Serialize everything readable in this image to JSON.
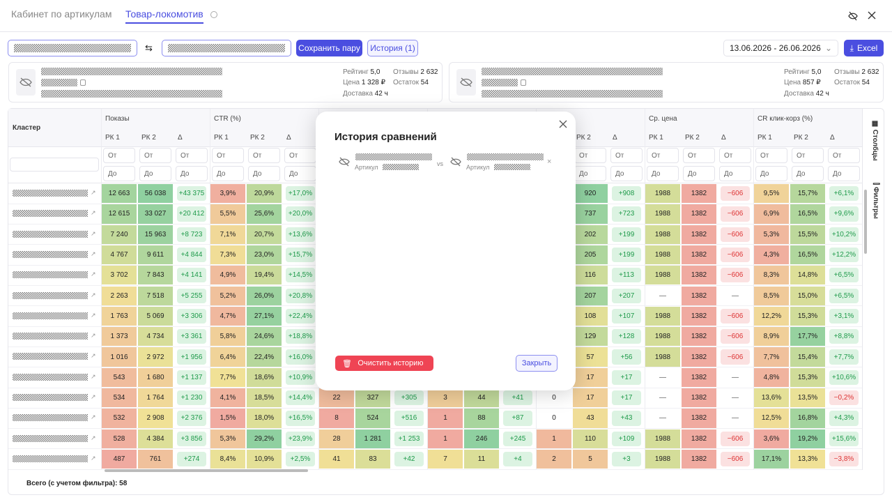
{
  "tabs": [
    "Кабинет по артикулам",
    "Товар-локомотив"
  ],
  "toolbar": {
    "save_pair": "Сохранить пару",
    "history": "История (1)",
    "date_range": "13.06.2026 - 26.06.2026",
    "excel": "Excel"
  },
  "cards": [
    {
      "stats": [
        {
          "label": "Рейтинг",
          "value": "5,0"
        },
        {
          "label": "Отзывы",
          "value": "2 632"
        },
        {
          "label": "Цена",
          "value": "1 328 ₽"
        },
        {
          "label": "Остаток",
          "value": "54"
        },
        {
          "label": "Доставка",
          "value": "42 ч"
        }
      ]
    },
    {
      "stats": [
        {
          "label": "Рейтинг",
          "value": "5,0"
        },
        {
          "label": "Отзывы",
          "value": "2 632"
        },
        {
          "label": "Цена",
          "value": "857 ₽"
        },
        {
          "label": "Остаток",
          "value": "54"
        },
        {
          "label": "Доставка",
          "value": "42 ч"
        }
      ]
    }
  ],
  "table": {
    "cluster_header": "Кластер",
    "groups": [
      {
        "title": "Показы",
        "start": 0
      },
      {
        "title": "CTR (%)",
        "start": 3
      },
      {
        "title": null,
        "start": 6
      },
      {
        "title": null,
        "start": 9
      },
      {
        "title": null,
        "start": 12
      },
      {
        "title": "Ср. цена",
        "start": 15
      },
      {
        "title": "CR клик-корз (%)",
        "start": 18
      }
    ],
    "subheaders": [
      "РК 1",
      "РК 2",
      "Δ",
      "РК 1",
      "РК 2",
      "Δ",
      null,
      null,
      null,
      null,
      null,
      null,
      null,
      "РК 2",
      "Δ",
      "РК 1",
      "РК 2",
      "Δ",
      "РК 1",
      "РК 2",
      "Δ"
    ],
    "filter_from": "От",
    "filter_to": "До",
    "rows": [
      [
        "12 663",
        "56 038",
        "+43 375",
        "3,9%",
        "20,9%",
        "+17,0%",
        null,
        null,
        null,
        null,
        null,
        null,
        null,
        "920",
        "+908",
        "1988",
        "1382",
        "−606",
        "9,5%",
        "15,7%",
        "+6,1%"
      ],
      [
        "12 615",
        "33 027",
        "+20 412",
        "5,5%",
        "25,6%",
        "+20,0%",
        null,
        null,
        null,
        null,
        null,
        null,
        null,
        "737",
        "+723",
        "1988",
        "1382",
        "−606",
        "6,9%",
        "16,5%",
        "+9,6%"
      ],
      [
        "7 240",
        "15 963",
        "+8 723",
        "7,1%",
        "20,7%",
        "+13,6%",
        null,
        null,
        null,
        null,
        null,
        null,
        null,
        "202",
        "+199",
        "1988",
        "1382",
        "−606",
        "5,3%",
        "15,5%",
        "+10,2%"
      ],
      [
        "4 767",
        "9 611",
        "+4 844",
        "7,3%",
        "23,0%",
        "+15,7%",
        null,
        null,
        null,
        null,
        null,
        null,
        null,
        "205",
        "+199",
        "1988",
        "1382",
        "−606",
        "4,3%",
        "16,5%",
        "+12,2%"
      ],
      [
        "3 702",
        "7 843",
        "+4 141",
        "4,9%",
        "19,4%",
        "+14,5%",
        null,
        null,
        null,
        null,
        null,
        null,
        null,
        "116",
        "+113",
        "1988",
        "1382",
        "−606",
        "8,3%",
        "14,8%",
        "+6,5%"
      ],
      [
        "2 263",
        "7 518",
        "+5 255",
        "5,2%",
        "26,0%",
        "+20,8%",
        null,
        null,
        null,
        null,
        null,
        null,
        null,
        "207",
        "+207",
        "—",
        "1382",
        "—",
        "8,5%",
        "15,0%",
        "+6,5%"
      ],
      [
        "1 763",
        "5 069",
        "+3 306",
        "4,7%",
        "27,1%",
        "+22,4%",
        null,
        null,
        null,
        null,
        null,
        null,
        null,
        "108",
        "+107",
        "1988",
        "1382",
        "−606",
        "12,2%",
        "15,3%",
        "+3,1%"
      ],
      [
        "1 373",
        "4 734",
        "+3 361",
        "5,8%",
        "24,6%",
        "+18,8%",
        null,
        null,
        null,
        null,
        null,
        null,
        null,
        "129",
        "+128",
        "1988",
        "1382",
        "−606",
        "8,9%",
        "17,7%",
        "+8,8%"
      ],
      [
        "1 016",
        "2 972",
        "+1 956",
        "6,4%",
        "22,4%",
        "+16,0%",
        null,
        null,
        null,
        null,
        null,
        null,
        null,
        "57",
        "+56",
        "1988",
        "1382",
        "−606",
        "7,7%",
        "15,4%",
        "+7,7%"
      ],
      [
        "543",
        "1 680",
        "+1 137",
        "7,7%",
        "18,6%",
        "+10,9%",
        null,
        null,
        null,
        null,
        null,
        null,
        null,
        "17",
        "+17",
        "—",
        "1382",
        "—",
        "4,8%",
        "15,3%",
        "+10,6%"
      ],
      [
        "534",
        "1 764",
        "+1 230",
        "4,1%",
        "18,5%",
        "+14,4%",
        "22",
        "327",
        "+305",
        "3",
        "44",
        "+41",
        "0",
        "17",
        "+17",
        "—",
        "1382",
        "—",
        "13,6%",
        "13,5%",
        "−0,2%"
      ],
      [
        "532",
        "2 908",
        "+2 376",
        "1,5%",
        "18,0%",
        "+16,5%",
        "8",
        "524",
        "+516",
        "1",
        "88",
        "+87",
        "0",
        "43",
        "+43",
        "—",
        "1382",
        "—",
        "12,5%",
        "16,8%",
        "+4,3%"
      ],
      [
        "528",
        "4 384",
        "+3 856",
        "5,3%",
        "29,2%",
        "+23,9%",
        "28",
        "1 281",
        "+1 253",
        "1",
        "246",
        "+245",
        "1",
        "110",
        "+109",
        "1988",
        "1382",
        "−606",
        "3,6%",
        "19,2%",
        "+15,6%"
      ],
      [
        "487",
        "761",
        "+274",
        "8,4%",
        "10,9%",
        "+2,5%",
        "41",
        "83",
        "+42",
        "7",
        "11",
        "+4",
        "2",
        "5",
        "+3",
        "1988",
        "1382",
        "−606",
        "17,1%",
        "13,3%",
        "−3,8%"
      ]
    ],
    "footer": "Всего (с учетом фильтра): 58"
  },
  "side": [
    "Столбцы",
    "Фильтры"
  ],
  "modal": {
    "title": "История сравнений",
    "item": {
      "left": "Артикул",
      "vs": "vs",
      "right": "Артикул"
    },
    "clear": "Очистить историю",
    "close": "Закрыть"
  }
}
